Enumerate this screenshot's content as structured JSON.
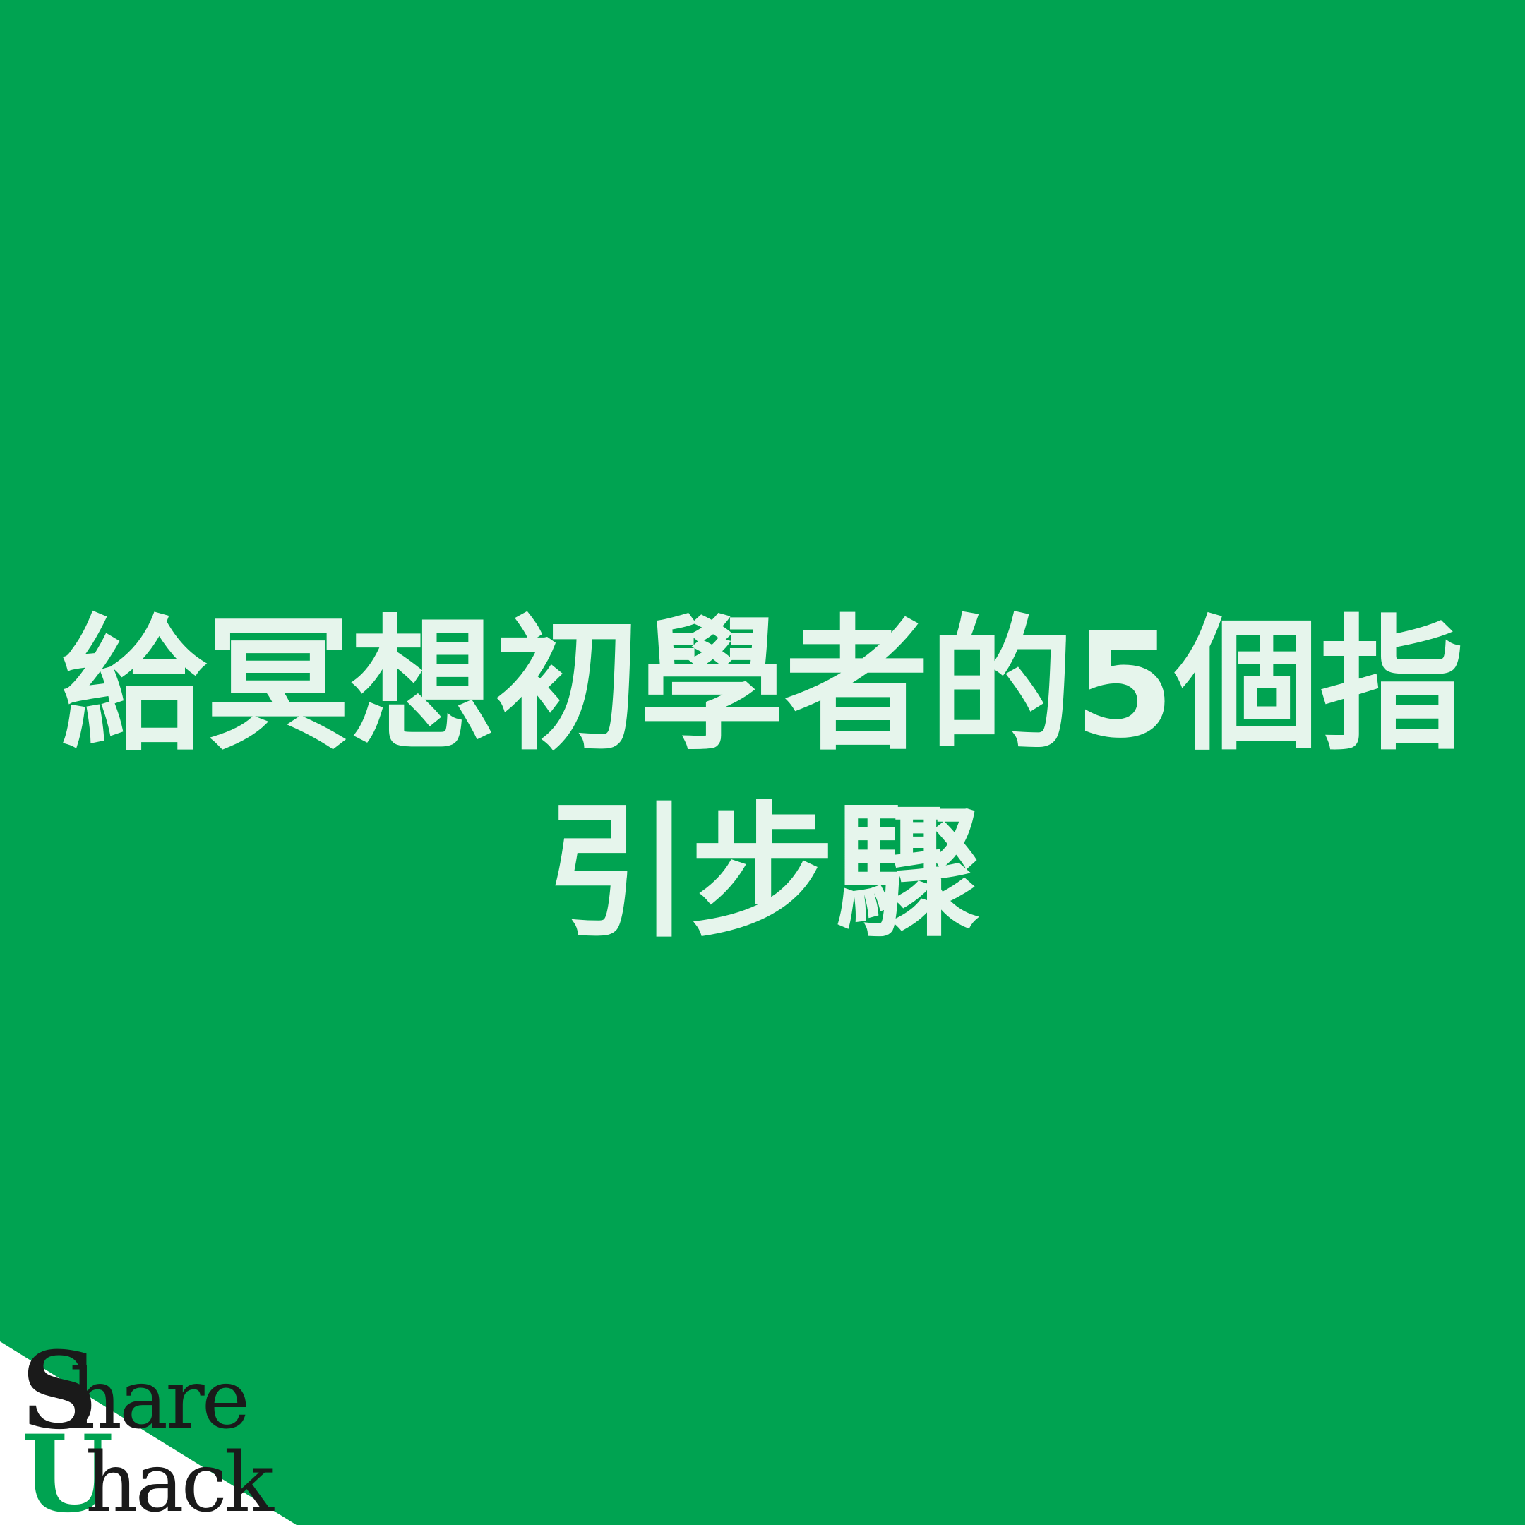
{
  "colors": {
    "background": "#00A351",
    "title_text": "#E6F5EC",
    "corner_wedge": "#FFFFFF",
    "logo_text": "#1A1A1A",
    "logo_accent": "#00A351"
  },
  "title": {
    "line1": "給冥想初學者的5個指",
    "line2": "引步驟"
  },
  "logo": {
    "initial_1": "S",
    "rest_1": "hare",
    "initial_2": "U",
    "rest_2": "hack"
  }
}
